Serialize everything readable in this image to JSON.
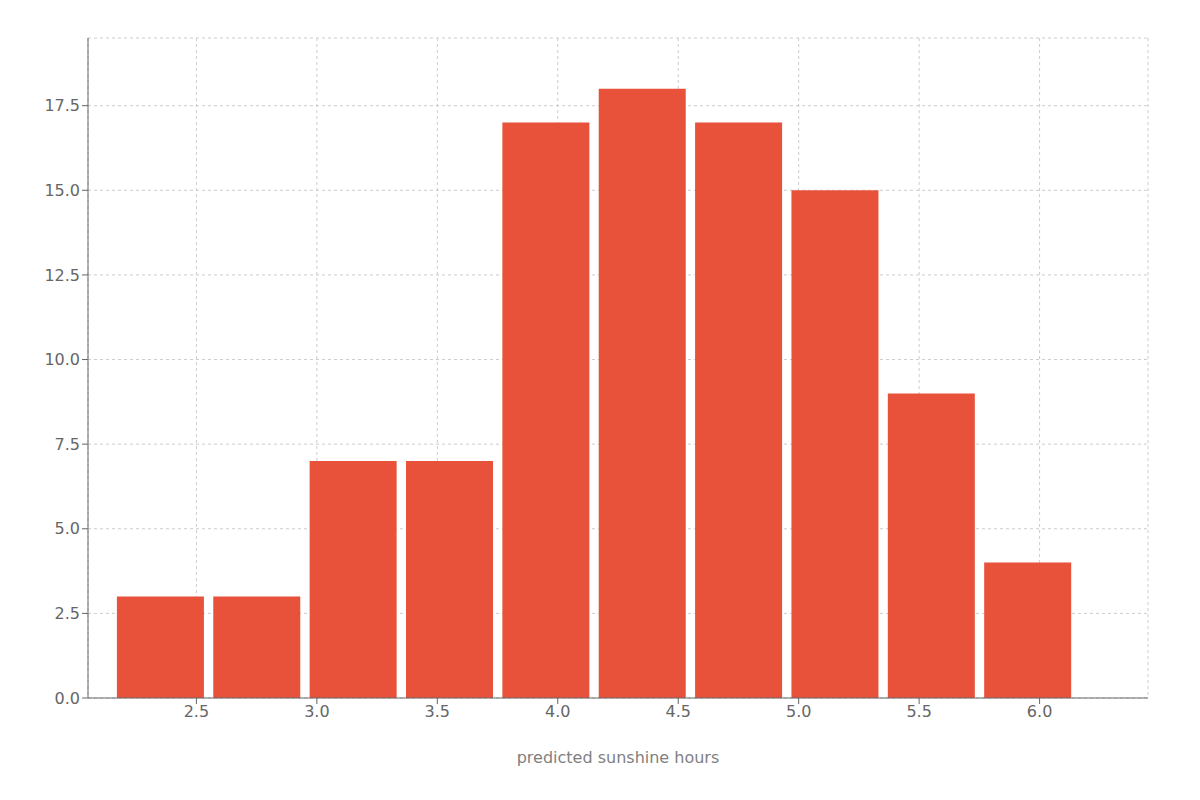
{
  "chart_data": {
    "type": "bar",
    "x": [
      2.35,
      2.75,
      3.15,
      3.55,
      3.95,
      4.35,
      4.75,
      5.15,
      5.55,
      5.95
    ],
    "values": [
      3,
      3,
      7,
      7,
      17,
      18,
      17,
      15,
      9,
      4
    ],
    "color": "#e8513a",
    "xlabel": "predicted sunshine hours",
    "xlim": [
      2.05,
      6.45
    ],
    "ylim": [
      0,
      19.5
    ],
    "xticks": [
      2.5,
      {
        "value": 3.0,
        "label": "3.0"
      },
      3.5,
      {
        "value": 4.0,
        "label": "4.0"
      },
      4.5,
      {
        "value": 5.0,
        "label": "5.0"
      },
      5.5,
      {
        "value": 6.0,
        "label": "6.0"
      }
    ],
    "yticks": [
      {
        "value": 0.0,
        "label": "0.0"
      },
      2.5,
      {
        "value": 5.0,
        "label": "5.0"
      },
      7.5,
      {
        "value": 10.0,
        "label": "10.0"
      },
      12.5,
      {
        "value": 15.0,
        "label": "15.0"
      },
      17.5
    ],
    "grid": true
  }
}
